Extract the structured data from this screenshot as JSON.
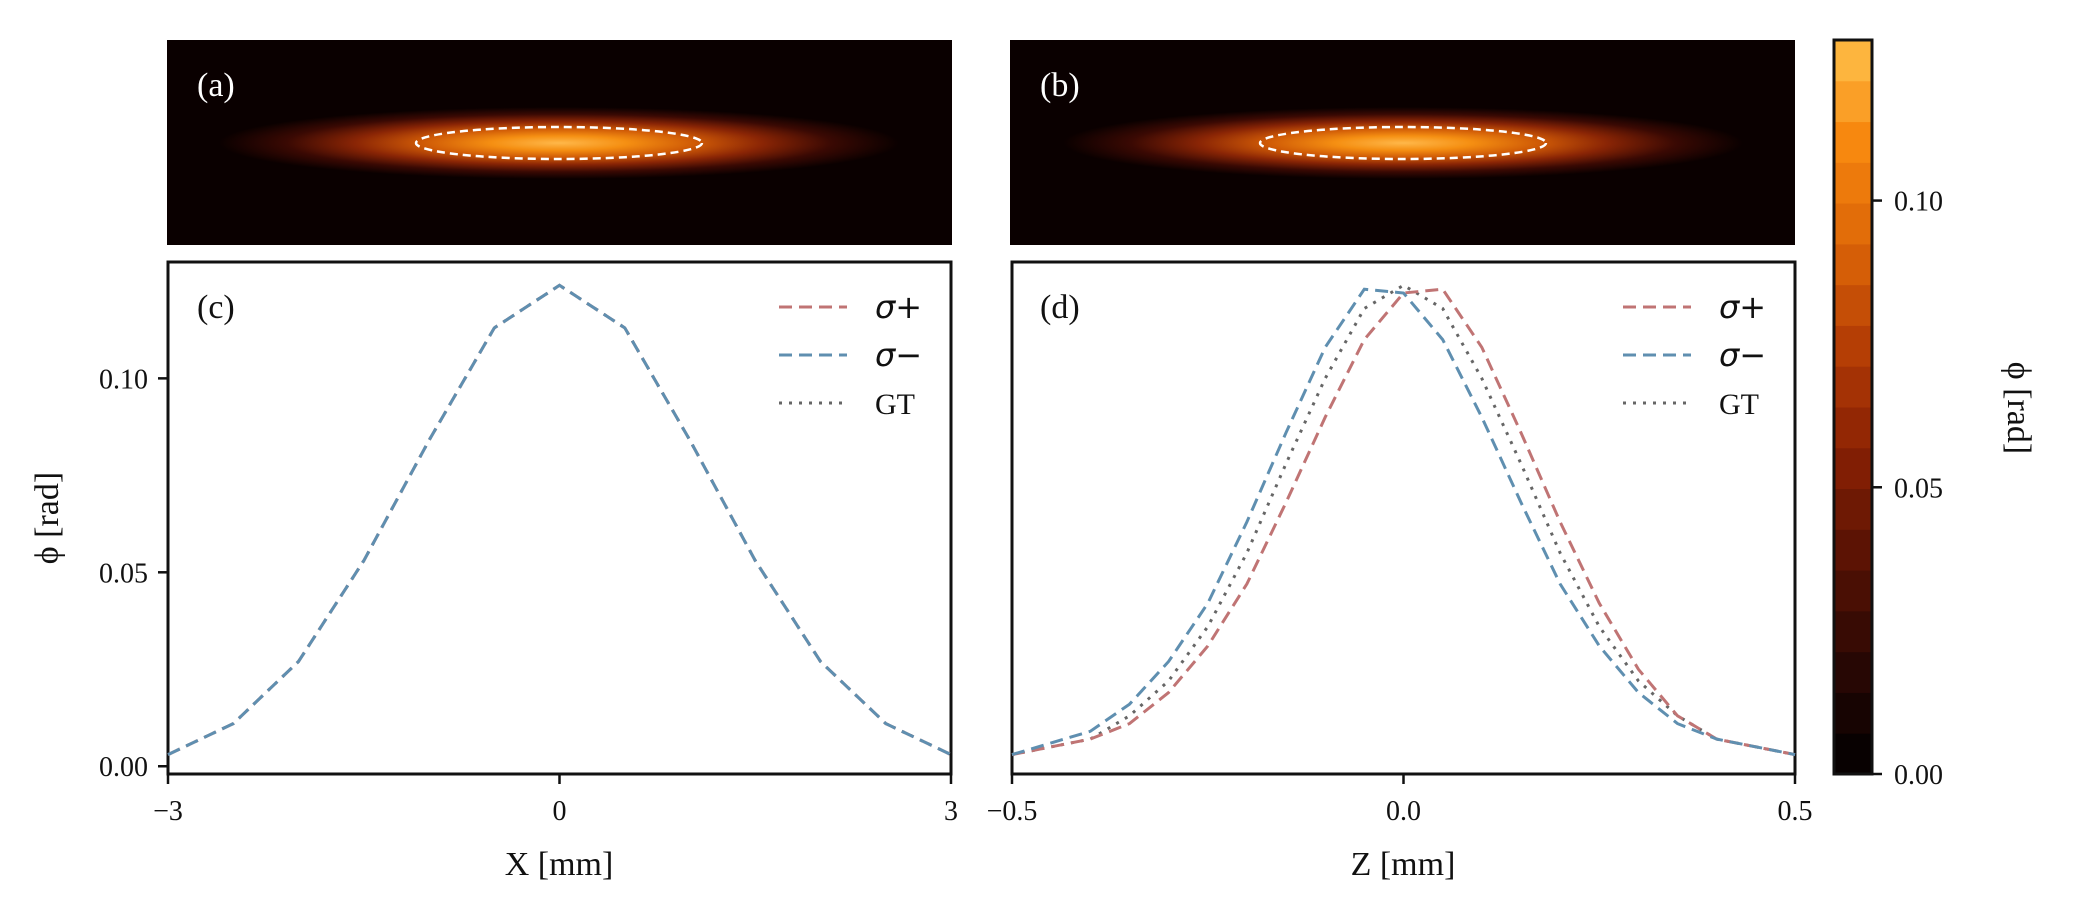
{
  "colors": {
    "sigma_plus": "#c07474",
    "sigma_minus": "#5f8fb0",
    "gt": "#666666",
    "background": "#0a0000"
  },
  "chart_data": [
    {
      "panel": "(a)",
      "type": "heatmap",
      "title": "",
      "xlabel": "",
      "ylabel": "",
      "colormap": "YlOrBr_r-like dark-to-orange",
      "peak": 0.124,
      "annotation": "white dashed ellipse at half-maximum contour"
    },
    {
      "panel": "(b)",
      "type": "heatmap",
      "title": "",
      "xlabel": "",
      "ylabel": "",
      "colormap": "YlOrBr_r-like dark-to-orange",
      "peak": 0.124,
      "annotation": "white dashed ellipse at half-maximum contour"
    },
    {
      "panel": "(c)",
      "type": "line",
      "xlabel": "X [mm]",
      "ylabel": "ϕ [rad]",
      "xlim": [
        -3,
        3
      ],
      "ylim": [
        -0.002,
        0.13
      ],
      "xticks": [
        -3,
        0,
        3
      ],
      "xtick_labels": [
        "−3",
        "0",
        "3"
      ],
      "yticks": [
        0.0,
        0.05,
        0.1
      ],
      "ytick_labels": [
        "0.00",
        "0.05",
        "0.10"
      ],
      "legend_position": "top-right",
      "x": [
        -3,
        -2.5,
        -2,
        -1.5,
        -1,
        -0.5,
        0,
        0.5,
        1,
        1.5,
        2,
        2.5,
        3
      ],
      "series": [
        {
          "name": "σ+",
          "style": "dashed",
          "values": [
            0.003,
            0.011,
            0.027,
            0.053,
            0.084,
            0.113,
            0.124,
            0.113,
            0.084,
            0.053,
            0.027,
            0.011,
            0.003
          ]
        },
        {
          "name": "σ−",
          "style": "dashed",
          "values": [
            0.003,
            0.011,
            0.027,
            0.053,
            0.084,
            0.113,
            0.124,
            0.113,
            0.084,
            0.053,
            0.027,
            0.011,
            0.003
          ]
        },
        {
          "name": "GT",
          "style": "dotted",
          "values": [
            0.003,
            0.011,
            0.027,
            0.053,
            0.084,
            0.113,
            0.124,
            0.113,
            0.084,
            0.053,
            0.027,
            0.011,
            0.003
          ]
        }
      ]
    },
    {
      "panel": "(d)",
      "type": "line",
      "xlabel": "Z [mm]",
      "ylabel": "",
      "xlim": [
        -0.5,
        0.5
      ],
      "ylim": [
        -0.002,
        0.13
      ],
      "xticks": [
        -0.5,
        0,
        0.5
      ],
      "xtick_labels": [
        "−0.5",
        "0.0",
        "0.5"
      ],
      "legend_position": "top-right",
      "x": [
        -0.5,
        -0.4,
        -0.35,
        -0.3,
        -0.25,
        -0.2,
        -0.15,
        -0.1,
        -0.05,
        0,
        0.05,
        0.1,
        0.15,
        0.2,
        0.25,
        0.3,
        0.35,
        0.4,
        0.5
      ],
      "series": [
        {
          "name": "σ+",
          "style": "dashed",
          "values": [
            0.003,
            0.007,
            0.011,
            0.019,
            0.031,
            0.047,
            0.068,
            0.09,
            0.11,
            0.122,
            0.123,
            0.108,
            0.086,
            0.063,
            0.042,
            0.025,
            0.013,
            0.007,
            0.003
          ]
        },
        {
          "name": "σ−",
          "style": "dashed",
          "values": [
            0.003,
            0.009,
            0.016,
            0.027,
            0.042,
            0.063,
            0.086,
            0.108,
            0.123,
            0.122,
            0.11,
            0.09,
            0.068,
            0.047,
            0.031,
            0.019,
            0.011,
            0.007,
            0.003
          ]
        },
        {
          "name": "GT",
          "style": "dotted",
          "values": [
            0.003,
            0.007,
            0.013,
            0.022,
            0.036,
            0.055,
            0.078,
            0.1,
            0.118,
            0.124,
            0.118,
            0.1,
            0.078,
            0.055,
            0.036,
            0.022,
            0.013,
            0.007,
            0.003
          ]
        }
      ]
    },
    {
      "panel": "colorbar",
      "type": "heatmap",
      "label": "ϕ [rad]",
      "range": [
        0.0,
        0.128
      ],
      "levels": 18,
      "ticks": [
        0.0,
        0.05,
        0.1
      ],
      "tick_labels": [
        "0.00",
        "0.05",
        "0.10"
      ]
    }
  ]
}
